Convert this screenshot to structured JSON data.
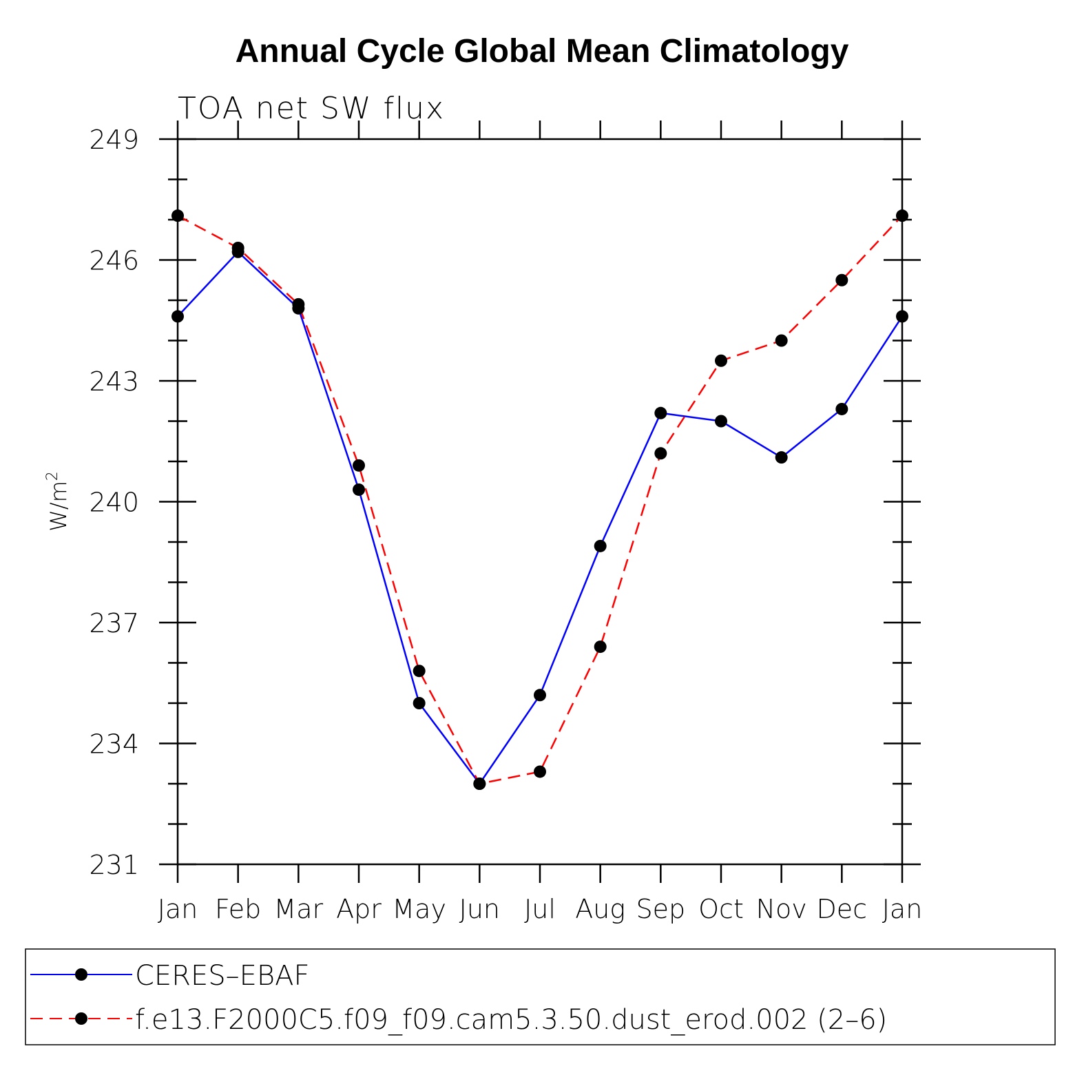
{
  "chart_data": {
    "type": "line",
    "title": "Annual Cycle Global Mean Climatology",
    "subtitle": "TOA net SW flux",
    "ylabel": "W/m",
    "ylabel_sup": "2",
    "xlabel": "",
    "categories": [
      "Jan",
      "Feb",
      "Mar",
      "Apr",
      "May",
      "Jun",
      "Jul",
      "Aug",
      "Sep",
      "Oct",
      "Nov",
      "Dec",
      "Jan"
    ],
    "ylim": [
      231,
      249
    ],
    "yticks": [
      "231",
      "234",
      "237",
      "240",
      "243",
      "246",
      "249"
    ],
    "yminor_step": 1,
    "grid": false,
    "legend_position": "bottom",
    "series": [
      {
        "name": "CERES–EBAF",
        "color": "#0000ff",
        "dash": "solid",
        "marker": "filled-circle",
        "values": [
          244.6,
          246.2,
          244.8,
          240.3,
          235.0,
          233.0,
          235.2,
          238.9,
          242.2,
          242.0,
          241.1,
          242.3,
          244.6
        ]
      },
      {
        "name": "f.e13.F2000C5.f09_f09.cam5.3.50.dust_erod.002 (2–6)",
        "color": "#ff0000",
        "dash": "dashed",
        "marker": "filled-circle",
        "values": [
          247.1,
          246.3,
          244.9,
          240.9,
          235.8,
          233.0,
          233.3,
          236.4,
          241.2,
          243.5,
          244.0,
          245.5,
          247.1
        ]
      }
    ]
  }
}
